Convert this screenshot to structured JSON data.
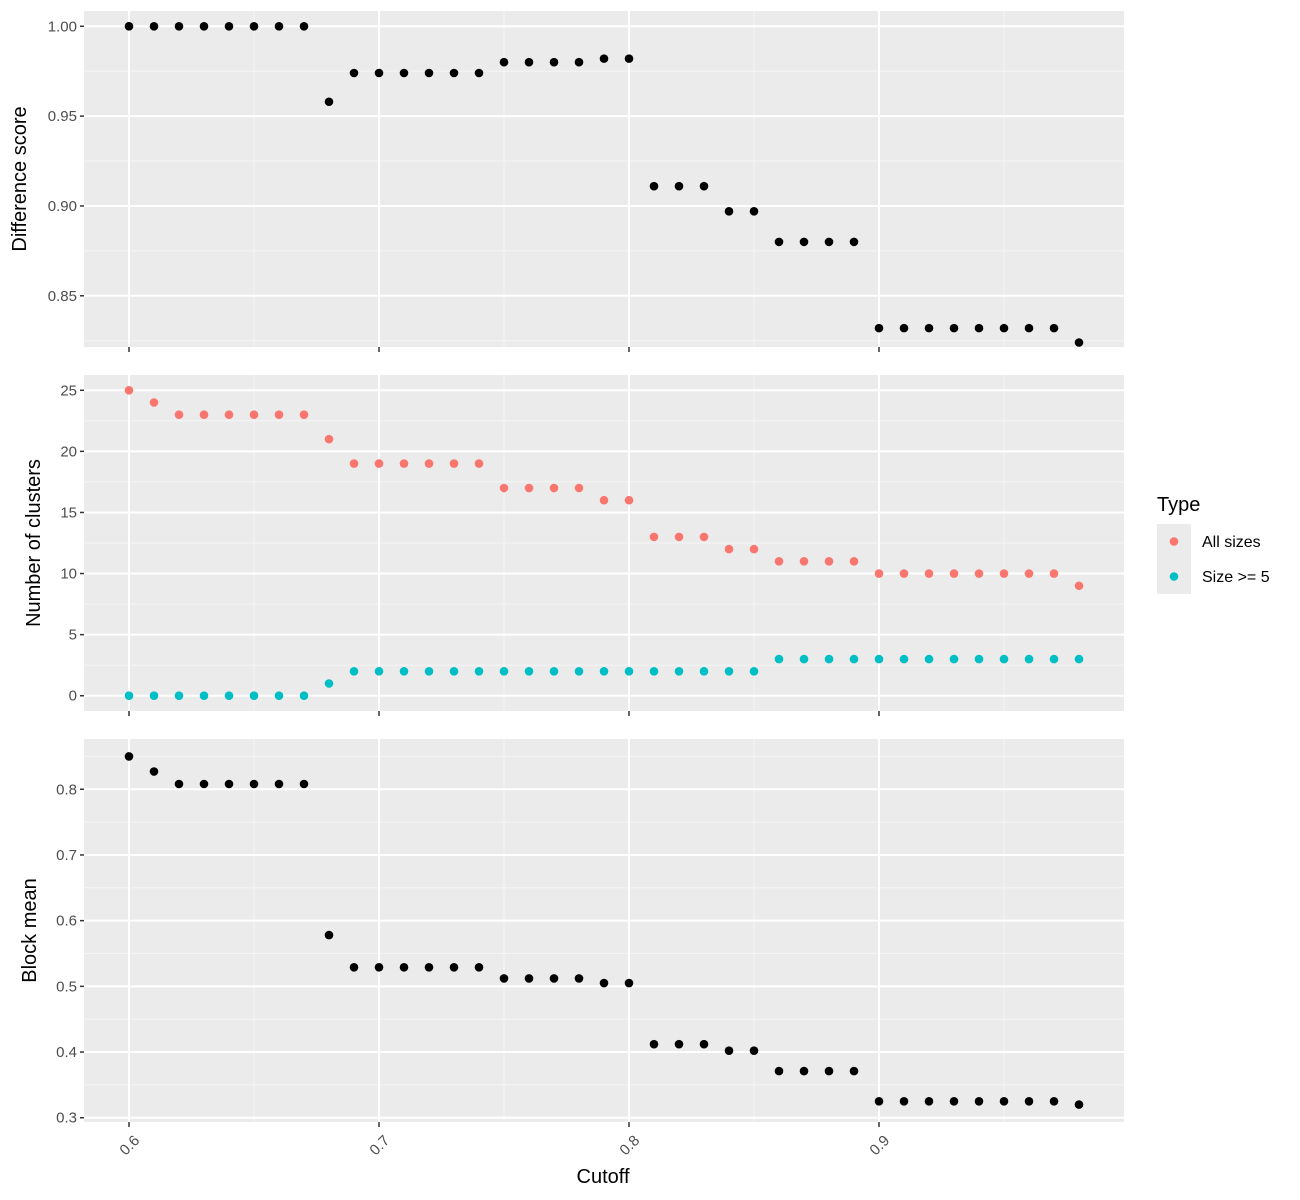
{
  "chart_data": {
    "type": "scatter",
    "x_axis": {
      "label": "Cutoff",
      "range": [
        0.582,
        0.998
      ],
      "ticks": [
        0.6,
        0.7,
        0.8,
        0.9
      ],
      "tick_labels": [
        "0.6",
        "0.7",
        "0.8",
        "0.9"
      ]
    },
    "x": [
      0.6,
      0.61,
      0.62,
      0.63,
      0.64,
      0.65,
      0.66,
      0.67,
      0.68,
      0.69,
      0.7,
      0.71,
      0.72,
      0.73,
      0.74,
      0.75,
      0.76,
      0.77,
      0.78,
      0.79,
      0.8,
      0.81,
      0.82,
      0.83,
      0.84,
      0.85,
      0.86,
      0.87,
      0.88,
      0.89,
      0.9,
      0.91,
      0.92,
      0.93,
      0.94,
      0.95,
      0.96,
      0.97,
      0.98
    ],
    "panels": [
      {
        "id": "difference",
        "ylabel": "Difference score",
        "ylim": [
          0.8215,
          1.0085
        ],
        "y_ticks": [
          0.85,
          0.9,
          0.95,
          1.0
        ],
        "y_tick_labels": [
          "0.85",
          "0.90",
          "0.95",
          "1.00"
        ],
        "series": [
          {
            "color": "#000000",
            "values": [
              1.0,
              1.0,
              1.0,
              1.0,
              1.0,
              1.0,
              1.0,
              1.0,
              0.958,
              0.974,
              0.974,
              0.974,
              0.974,
              0.974,
              0.974,
              0.98,
              0.98,
              0.98,
              0.98,
              0.982,
              0.982,
              0.911,
              0.911,
              0.911,
              0.897,
              0.897,
              0.88,
              0.88,
              0.88,
              0.88,
              0.832,
              0.832,
              0.832,
              0.832,
              0.832,
              0.832,
              0.832,
              0.832,
              0.824
            ]
          }
        ]
      },
      {
        "id": "clusters",
        "ylabel": "Number of clusters",
        "ylim": [
          -1.25,
          26.25
        ],
        "y_ticks": [
          0,
          5,
          10,
          15,
          20,
          25
        ],
        "y_tick_labels": [
          "0",
          "5",
          "10",
          "15",
          "20",
          "25"
        ],
        "series": [
          {
            "name": "All sizes",
            "color": "#F8766D",
            "values": [
              25,
              24,
              23,
              23,
              23,
              23,
              23,
              23,
              21,
              19,
              19,
              19,
              19,
              19,
              19,
              17,
              17,
              17,
              17,
              16,
              16,
              13,
              13,
              13,
              12,
              12,
              11,
              11,
              11,
              11,
              10,
              10,
              10,
              10,
              10,
              10,
              10,
              10,
              9
            ]
          },
          {
            "name": "Size >= 5",
            "color": "#00BFC4",
            "values": [
              0,
              0,
              0,
              0,
              0,
              0,
              0,
              0,
              1,
              2,
              2,
              2,
              2,
              2,
              2,
              2,
              2,
              2,
              2,
              2,
              2,
              2,
              2,
              2,
              2,
              2,
              3,
              3,
              3,
              3,
              3,
              3,
              3,
              3,
              3,
              3,
              3,
              3,
              3
            ]
          }
        ]
      },
      {
        "id": "block",
        "ylabel": "Block mean",
        "ylim": [
          0.2935,
          0.8765
        ],
        "y_ticks": [
          0.3,
          0.4,
          0.5,
          0.6,
          0.7,
          0.8
        ],
        "y_tick_labels": [
          "0.3",
          "0.4",
          "0.5",
          "0.6",
          "0.7",
          "0.8"
        ],
        "series": [
          {
            "color": "#000000",
            "values": [
              0.85,
              0.827,
              0.808,
              0.808,
              0.808,
              0.808,
              0.808,
              0.808,
              0.578,
              0.529,
              0.529,
              0.529,
              0.529,
              0.529,
              0.529,
              0.512,
              0.512,
              0.512,
              0.512,
              0.505,
              0.505,
              0.412,
              0.412,
              0.412,
              0.402,
              0.402,
              0.371,
              0.371,
              0.371,
              0.371,
              0.325,
              0.325,
              0.325,
              0.325,
              0.325,
              0.325,
              0.325,
              0.325,
              0.32
            ]
          }
        ]
      }
    ],
    "legend": {
      "title": "Type",
      "position": "right",
      "entries": [
        {
          "label": "All sizes",
          "color": "#F8766D"
        },
        {
          "label": "Size >= 5",
          "color": "#00BFC4"
        }
      ]
    },
    "grid": true
  }
}
